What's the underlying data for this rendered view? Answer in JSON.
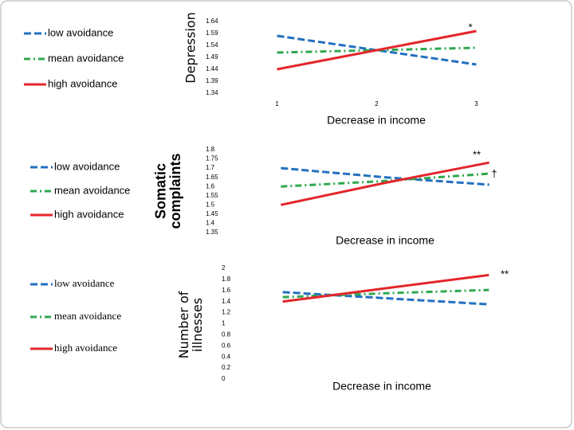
{
  "chart_data": [
    {
      "type": "line",
      "ylabel": [
        "Depression"
      ],
      "xlabel": "Decrease in income",
      "categories": [
        1,
        2,
        3
      ],
      "series": [
        {
          "name": "low avoidance",
          "color": "#2470c0",
          "dash": "dashed",
          "values": [
            1.58,
            1.52,
            1.46
          ]
        },
        {
          "name": "mean avoidance",
          "color": "#2fa84f",
          "dash": "dashdot",
          "values": [
            1.51,
            1.52,
            1.53
          ]
        },
        {
          "name": "high avoidance",
          "color": "#e3262b",
          "dash": "solid",
          "values": [
            1.44,
            1.52,
            1.6
          ]
        }
      ],
      "ylim": [
        1.34,
        1.64
      ],
      "yticks": [
        1.64,
        1.59,
        1.54,
        1.49,
        1.44,
        1.39,
        1.34
      ],
      "annotations": [
        "*"
      ]
    },
    {
      "type": "line",
      "ylabel": [
        "Somatic",
        "complaints"
      ],
      "xlabel": "Decrease in income",
      "categories": [
        null,
        null,
        null
      ],
      "series": [
        {
          "name": "low avoidance",
          "color": "#2470c0",
          "dash": "dashed",
          "values": [
            1.7,
            1.65,
            1.61
          ]
        },
        {
          "name": "mean avoidance",
          "color": "#2fa84f",
          "dash": "dashdot",
          "values": [
            1.6,
            1.63,
            1.67
          ]
        },
        {
          "name": "high avoidance",
          "color": "#e3262b",
          "dash": "solid",
          "values": [
            1.5,
            1.62,
            1.73
          ]
        }
      ],
      "ylim": [
        1.35,
        1.8
      ],
      "yticks": [
        1.8,
        1.75,
        1.7,
        1.65,
        1.6,
        1.55,
        1.5,
        1.45,
        1.4,
        1.35
      ],
      "annotations": [
        "**",
        "†"
      ]
    },
    {
      "type": "line",
      "ylabel": [
        "Number of",
        "illnesses"
      ],
      "xlabel": "Decrease in income",
      "categories": [
        null,
        null,
        null
      ],
      "series": [
        {
          "name": "low avoidance",
          "color": "#2470c0",
          "dash": "dashed",
          "values": [
            1.57,
            1.46,
            1.35
          ]
        },
        {
          "name": "mean avoidance",
          "color": "#2fa84f",
          "dash": "dashdot",
          "values": [
            1.48,
            1.55,
            1.61
          ]
        },
        {
          "name": "high avoidance",
          "color": "#e3262b",
          "dash": "solid",
          "values": [
            1.4,
            1.64,
            1.88
          ]
        }
      ],
      "ylim": [
        0,
        2
      ],
      "yticks": [
        2,
        1.8,
        1.6,
        1.4,
        1.2,
        1,
        0.8,
        0.6,
        0.4,
        0.2,
        0
      ],
      "annotations": [
        "**"
      ]
    }
  ]
}
